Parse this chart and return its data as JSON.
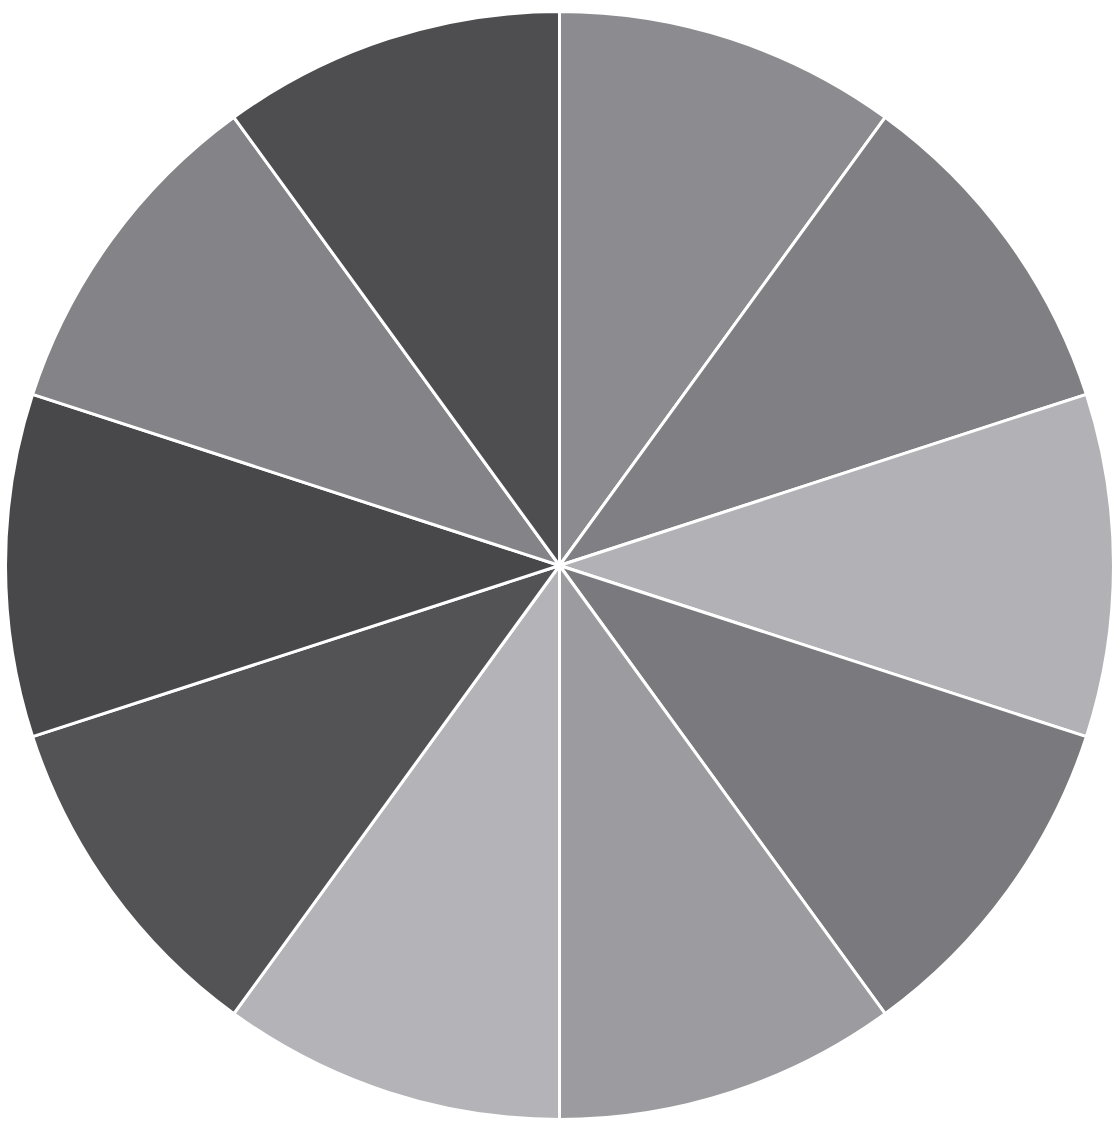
{
  "chart_data": {
    "type": "pie",
    "categories": [
      null,
      null,
      null,
      null,
      null,
      null,
      null,
      null,
      null,
      null
    ],
    "values": [
      10,
      10,
      10,
      10,
      10,
      10,
      10,
      10,
      10,
      10
    ],
    "colors": [
      "#8c8c90",
      "#808084",
      "#b2b2b6",
      "#7a7a7e",
      "#9c9ca0",
      "#b4b4b8",
      "#535356",
      "#48484b",
      "#848488",
      "#4e4e51"
    ],
    "legend": false
  }
}
